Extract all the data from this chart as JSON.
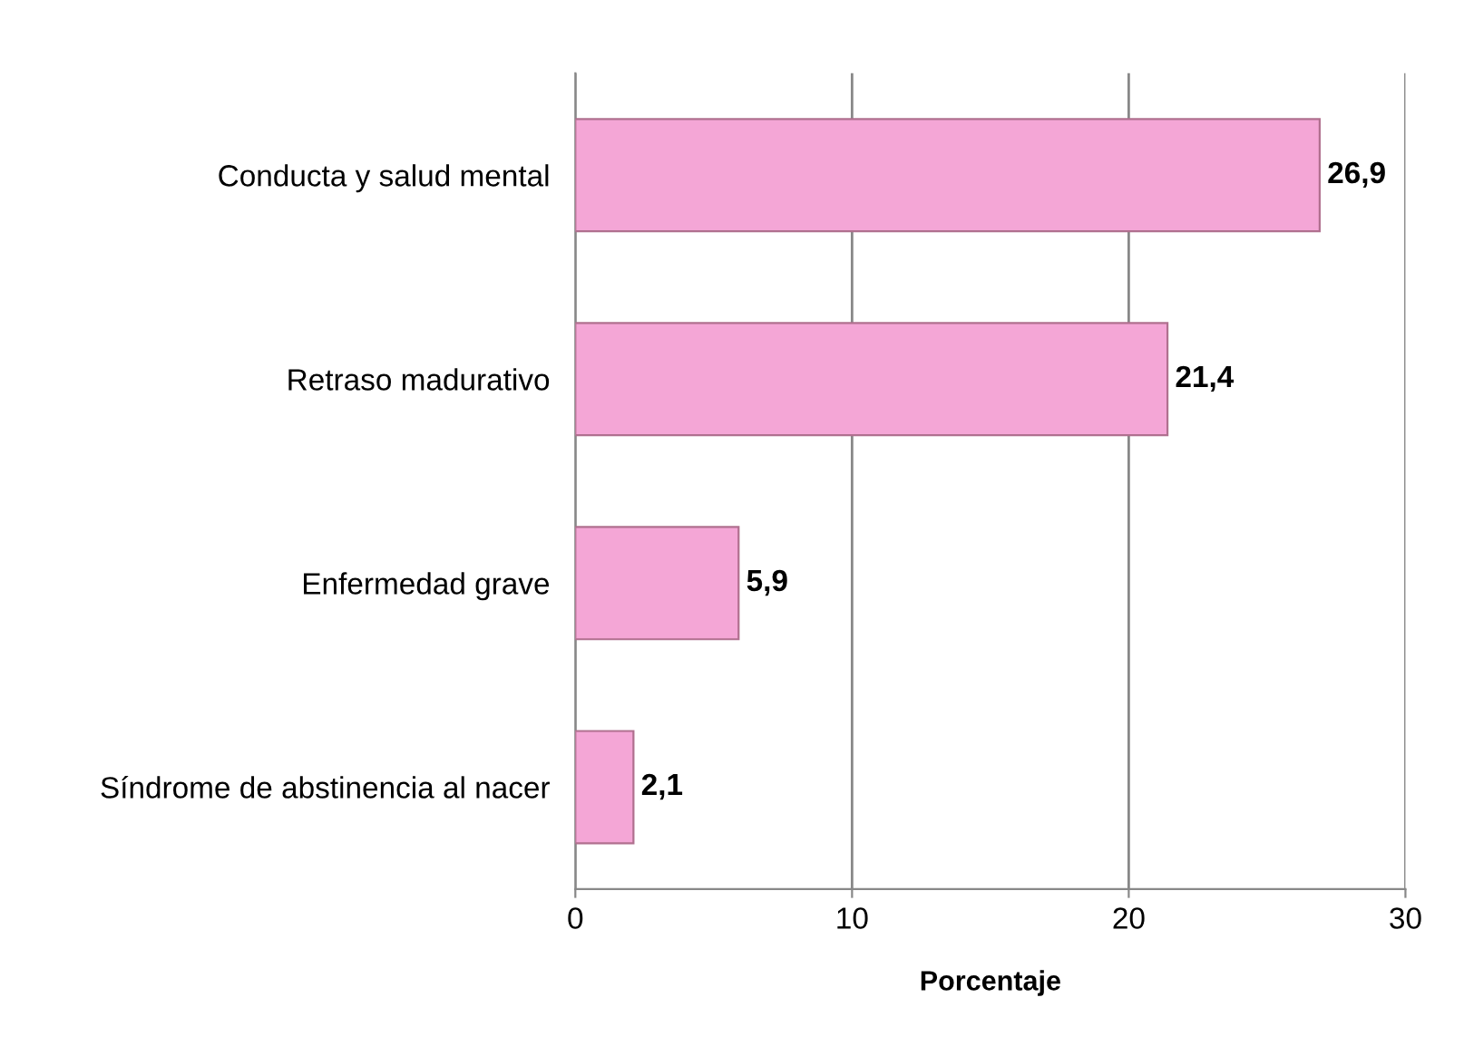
{
  "chart_data": {
    "type": "bar",
    "orientation": "horizontal",
    "categories": [
      "Conducta y salud mental",
      "Retraso madurativo",
      "Enfermedad grave",
      "Síndrome de abstinencia al nacer"
    ],
    "values": [
      26.9,
      21.4,
      5.9,
      2.1
    ],
    "value_labels": [
      "26,9",
      "21,4",
      "5,9",
      "2,1"
    ],
    "color": "#f4a6d6",
    "xlabel": "Porcentaje",
    "xlim": [
      0,
      30
    ],
    "xticks": [
      0,
      10,
      20,
      30
    ],
    "grid": "x"
  }
}
